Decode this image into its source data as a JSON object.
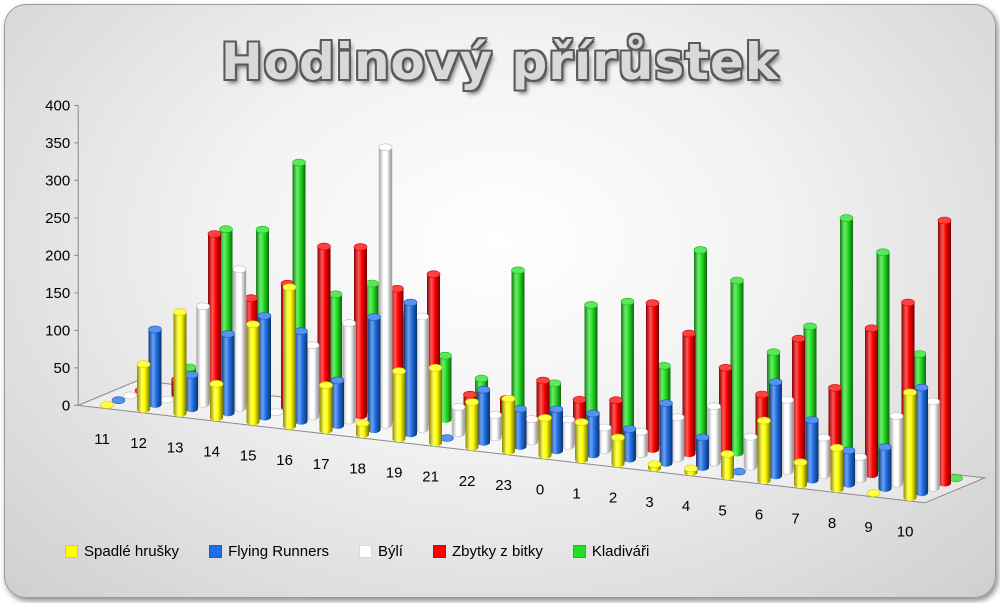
{
  "chart_data": {
    "type": "bar",
    "title": "Hodinový přírůstek",
    "categories": [
      "11",
      "12",
      "13",
      "14",
      "15",
      "16",
      "17",
      "18",
      "19",
      "21",
      "22",
      "23",
      "0",
      "1",
      "2",
      "3",
      "4",
      "5",
      "6",
      "7",
      "8",
      "9",
      "10"
    ],
    "ylim": [
      0,
      400
    ],
    "yticks": [
      "0",
      "50",
      "100",
      "150",
      "200",
      "250",
      "300",
      "350",
      "400"
    ],
    "grid": false,
    "legend_position": "bottom",
    "series": [
      {
        "name": "Spadlé hrušky",
        "color": "#ffff00",
        "values": [
          0,
          60,
          135,
          45,
          130,
          185,
          60,
          15,
          90,
          100,
          60,
          70,
          50,
          50,
          35,
          5,
          5,
          30,
          80,
          30,
          55,
          0,
          140
        ]
      },
      {
        "name": "Flying Runners",
        "color": "#1e6fe6",
        "values": [
          0,
          100,
          45,
          105,
          135,
          120,
          60,
          150,
          175,
          0,
          70,
          50,
          55,
          55,
          40,
          80,
          40,
          0,
          125,
          80,
          45,
          55,
          140
        ]
      },
      {
        "name": "Býlí",
        "color": "#ffffff",
        "values": [
          0,
          0,
          130,
          185,
          0,
          95,
          130,
          370,
          150,
          35,
          30,
          30,
          35,
          30,
          30,
          55,
          75,
          40,
          95,
          50,
          30,
          90,
          115
        ]
      },
      {
        "name": "Zbytky z bitky",
        "color": "#ff0000",
        "values": [
          0,
          20,
          220,
          140,
          165,
          220,
          225,
          175,
          200,
          45,
          45,
          75,
          55,
          60,
          195,
          160,
          120,
          90,
          170,
          110,
          195,
          235,
          350
        ]
      },
      {
        "name": "Kladiváři",
        "color": "#22e022",
        "values": [
          0,
          30,
          220,
          225,
          320,
          150,
          170,
          135,
          85,
          60,
          210,
          65,
          175,
          185,
          105,
          265,
          230,
          140,
          180,
          330,
          290,
          160,
          0
        ]
      }
    ]
  }
}
